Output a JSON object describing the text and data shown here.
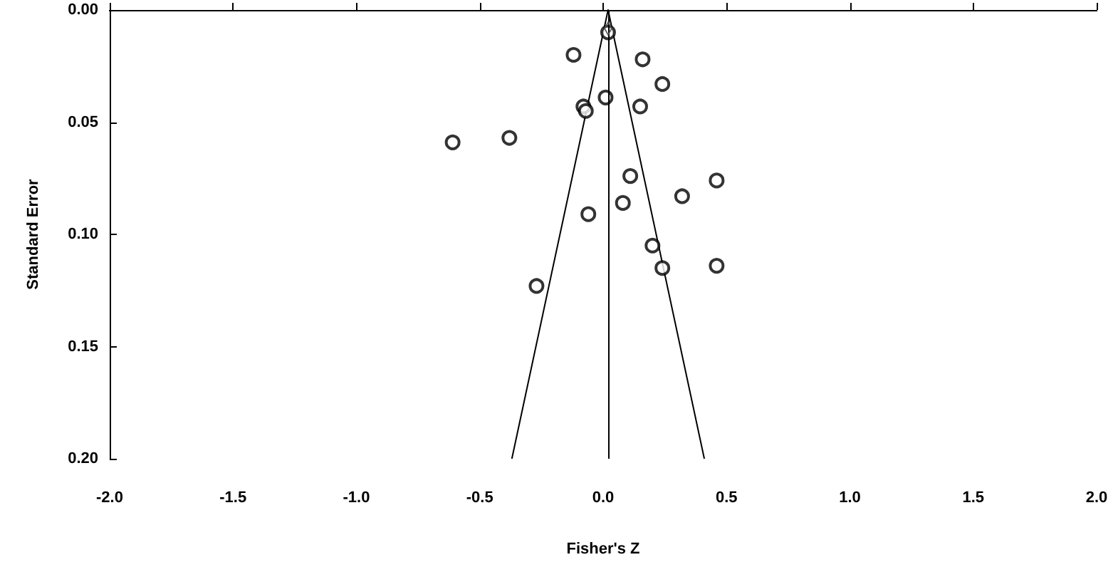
{
  "chart_data": {
    "type": "scatter",
    "xlabel": "Fisher's Z",
    "ylabel": "Standard Error",
    "xlim": [
      -2,
      2
    ],
    "ylim": [
      0.2,
      0
    ],
    "xticks": [
      {
        "value": -2,
        "label": "-2.0"
      },
      {
        "value": -1.5,
        "label": "-1.5"
      },
      {
        "value": -1,
        "label": "-1.0"
      },
      {
        "value": -0.5,
        "label": "-0.5"
      },
      {
        "value": 0,
        "label": "0.0"
      },
      {
        "value": 0.5,
        "label": "0.5"
      },
      {
        "value": 1,
        "label": "1.0"
      },
      {
        "value": 1.5,
        "label": "1.5"
      },
      {
        "value": 2,
        "label": "2.0"
      }
    ],
    "yticks": [
      {
        "value": 0,
        "label": "0.00"
      },
      {
        "value": 0.05,
        "label": "0.05"
      },
      {
        "value": 0.1,
        "label": "0.10"
      },
      {
        "value": 0.15,
        "label": "0.15"
      },
      {
        "value": 0.2,
        "label": "0.20"
      }
    ],
    "grid": false,
    "marker": "circle",
    "series": [
      {
        "type": "scatter",
        "color": "#000000",
        "x": [
          0.02,
          -0.12,
          0.16,
          0.24,
          0.01,
          -0.08,
          -0.07,
          0.15,
          -0.61,
          -0.38,
          0.11,
          0.46,
          0.32,
          0.08,
          -0.06,
          0.2,
          0.24,
          0.46,
          -0.27
        ],
        "values": [
          0.01,
          0.02,
          0.022,
          0.033,
          0.039,
          0.043,
          0.045,
          0.043,
          0.059,
          0.057,
          0.074,
          0.076,
          0.083,
          0.086,
          0.091,
          0.105,
          0.115,
          0.114,
          0.123
        ]
      },
      {
        "type": "line",
        "color": "#000000",
        "marker": "none",
        "x": [
          -0.37,
          0.02,
          0.41
        ],
        "values": [
          0.2,
          0,
          0.2
        ]
      }
    ],
    "ref_lines": [
      {
        "axis": "x",
        "value": 0.02,
        "color": "#000000"
      }
    ]
  }
}
